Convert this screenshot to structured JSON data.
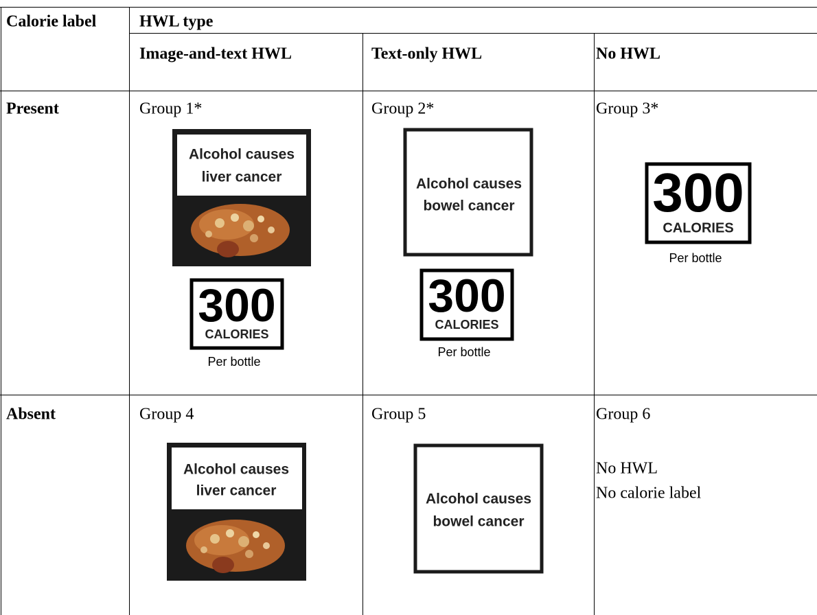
{
  "table": {
    "header": {
      "row_header": "Calorie label",
      "group_header": "HWL type",
      "columns": [
        "Image-and-text HWL",
        "Text-only HWL",
        "No HWL"
      ]
    },
    "rows": [
      {
        "label": "Present",
        "cells": [
          {
            "group": "Group 1*",
            "warning": [
              "Alcohol causes",
              "liver cancer"
            ],
            "calorie": {
              "amount": 300,
              "unit": "CALORIES",
              "note": "Per bottle"
            }
          },
          {
            "group": "Group 2*",
            "warning": [
              "Alcohol causes",
              "bowel cancer"
            ],
            "calorie": {
              "amount": 300,
              "unit": "CALORIES",
              "note": "Per bottle"
            }
          },
          {
            "group": "Group 3*",
            "calorie": {
              "amount": 300,
              "unit": "CALORIES",
              "note": "Per bottle"
            }
          }
        ]
      },
      {
        "label": "Absent",
        "cells": [
          {
            "group": "Group 4",
            "warning": [
              "Alcohol causes",
              "liver cancer"
            ]
          },
          {
            "group": "Group 5",
            "warning": [
              "Alcohol causes",
              "bowel cancer"
            ]
          },
          {
            "group": "Group 6",
            "text": [
              "No HWL",
              "No calorie label"
            ]
          }
        ]
      }
    ]
  }
}
